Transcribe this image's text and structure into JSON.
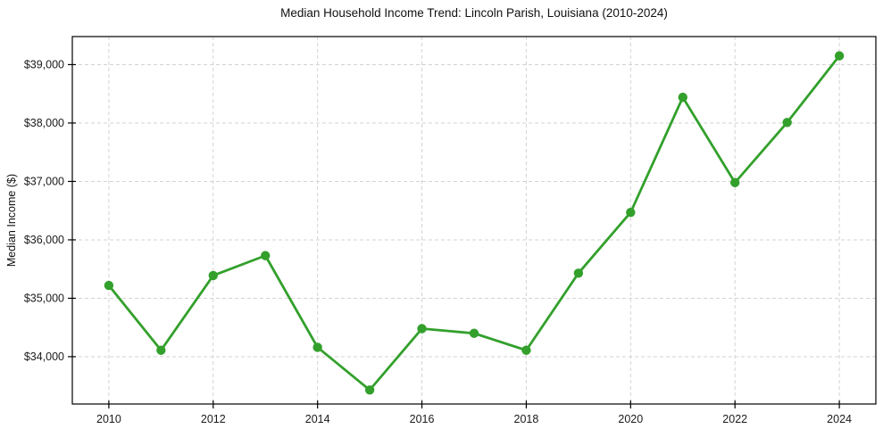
{
  "chart_data": {
    "type": "line",
    "title": "Median Household Income Trend: Lincoln Parish, Louisiana (2010-2024)",
    "xlabel": "",
    "ylabel": "Median Income ($)",
    "series": [
      {
        "name": "Median household income",
        "x": [
          2010,
          2011,
          2012,
          2013,
          2014,
          2015,
          2016,
          2017,
          2018,
          2019,
          2020,
          2021,
          2022,
          2023,
          2024
        ],
        "values": [
          35220,
          34110,
          35390,
          35730,
          34160,
          33430,
          34480,
          34400,
          34110,
          35430,
          36470,
          38440,
          36980,
          38010,
          39150
        ]
      }
    ],
    "xticks": [
      2010,
      2012,
      2014,
      2016,
      2018,
      2020,
      2022,
      2024
    ],
    "xtick_labels": [
      "2010",
      "2012",
      "2014",
      "2016",
      "2018",
      "2020",
      "2022",
      "2024"
    ],
    "yticks": [
      34000,
      35000,
      36000,
      37000,
      38000,
      39000
    ],
    "ytick_labels": [
      "$34,000",
      "$35,000",
      "$36,000",
      "$37,000",
      "$38,000",
      "$39,000"
    ],
    "xlim": [
      2009.3,
      2024.7
    ],
    "ylim": [
      33190,
      39480
    ],
    "grid": true,
    "grid_style": "dashed",
    "legend": false,
    "colors": {
      "line": "#33a02c",
      "marker": "#33a02c",
      "grid": "#d3d3d3",
      "spine": "#000000",
      "tick_text": "#1a1a1a",
      "background": "#ffffff"
    }
  }
}
